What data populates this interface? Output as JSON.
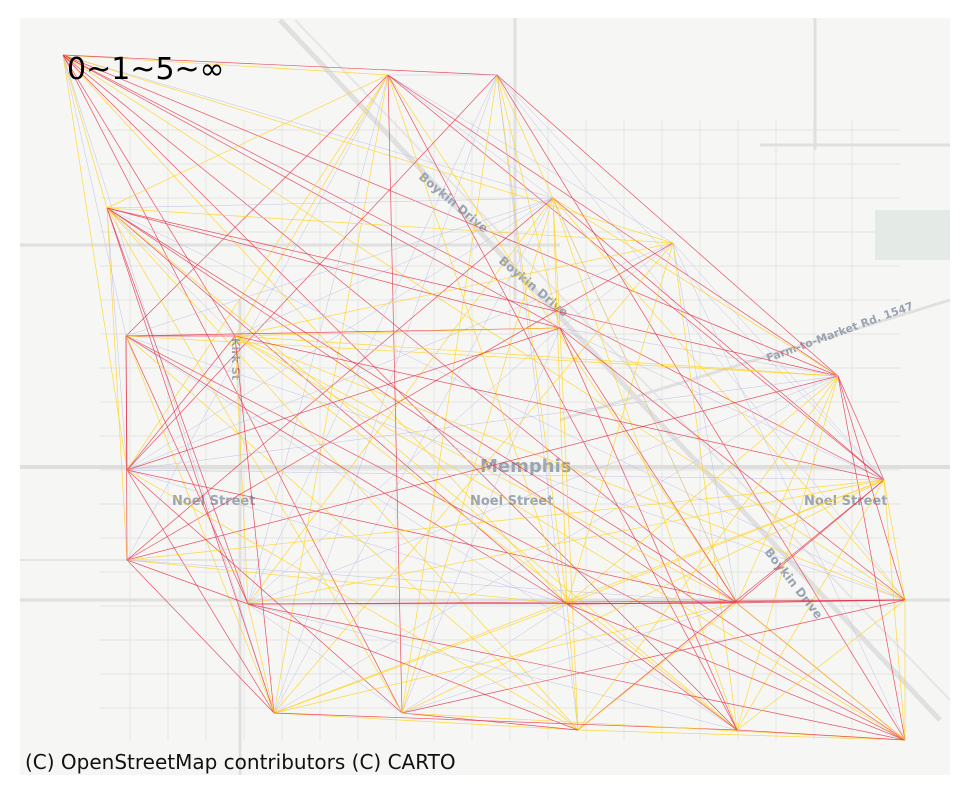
{
  "map": {
    "town_label": "Memphis",
    "street_labels": {
      "noel_left": "Noel Street",
      "noel_center": "Noel Street",
      "noel_right": "Noel Street",
      "boykin_upper": "Boykin Drive",
      "boykin_middle": "Boykin Drive",
      "boykin_lower": "Boykin Drive",
      "farm_to_market": "Farm-to-Market Rd. 1547",
      "side_street": "Kirk St"
    }
  },
  "legend": {
    "title": "0~1~5~∞"
  },
  "attribution": "(C) OpenStreetMap contributors (C) CARTO",
  "colors": {
    "map_background": "#f6f6f4",
    "road": "#e2e2e2",
    "street_label": "#9aa4b0",
    "flow_low": "#b8b8e6",
    "flow_mid": "#ffd21f",
    "flow_high": "#e8334a"
  }
}
